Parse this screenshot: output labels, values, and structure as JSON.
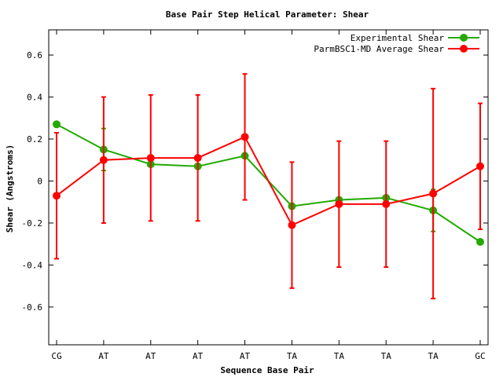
{
  "chart_data": {
    "type": "line",
    "title": "Base Pair Step Helical Parameter: Shear",
    "xlabel": "Sequence Base Pair",
    "ylabel": "Shear (Angstroms)",
    "categories": [
      "CG",
      "AT",
      "AT",
      "AT",
      "AT",
      "TA",
      "TA",
      "TA",
      "TA",
      "GC"
    ],
    "ylim": [
      -0.78,
      0.72
    ],
    "yticks": [
      -0.6,
      -0.4,
      -0.2,
      0,
      0.2,
      0.4,
      0.6
    ],
    "ytick_labels": [
      "-0.6",
      "-0.4",
      "-0.2",
      "0",
      "0.2",
      "0.4",
      "0.6"
    ],
    "grid": false,
    "legend_position": "top-right",
    "series": [
      {
        "name": "Experimental Shear",
        "color": "#22aa00",
        "values": [
          0.27,
          0.15,
          0.08,
          0.07,
          0.12,
          -0.12,
          -0.09,
          -0.08,
          -0.14,
          -0.29
        ],
        "error_low": [
          null,
          0.05,
          null,
          null,
          null,
          null,
          null,
          null,
          -0.24,
          null
        ],
        "error_high": [
          null,
          0.25,
          null,
          null,
          null,
          null,
          null,
          null,
          -0.04,
          null
        ]
      },
      {
        "name": "ParmBSC1-MD Average Shear",
        "color": "#ff0000",
        "values": [
          -0.07,
          0.1,
          0.11,
          0.11,
          0.21,
          -0.21,
          -0.11,
          -0.11,
          -0.06,
          0.07
        ],
        "error_low": [
          -0.37,
          -0.2,
          -0.19,
          -0.19,
          -0.09,
          -0.51,
          -0.41,
          -0.41,
          -0.56,
          -0.23
        ],
        "error_high": [
          0.23,
          0.4,
          0.41,
          0.41,
          0.51,
          0.09,
          0.19,
          0.19,
          0.44,
          0.37
        ]
      }
    ]
  }
}
